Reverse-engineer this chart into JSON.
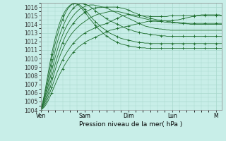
{
  "xlabel": "Pression niveau de la mer( hPa )",
  "ylim": [
    1004,
    1016.5
  ],
  "yticks": [
    1004,
    1005,
    1006,
    1007,
    1008,
    1009,
    1010,
    1011,
    1012,
    1013,
    1014,
    1015,
    1016
  ],
  "day_labels": [
    "Ven",
    "Sam",
    "Dim",
    "Lun",
    "M"
  ],
  "day_positions": [
    0,
    24,
    48,
    72,
    96
  ],
  "bg_color": "#c8eee8",
  "grid_color": "#a8d8cc",
  "line_color": "#1a6b2a",
  "total_hours": 100,
  "series": [
    [
      1004.0,
      1004.15,
      1004.35,
      1004.65,
      1005.05,
      1005.5,
      1006.0,
      1006.5,
      1007.0,
      1007.5,
      1008.0,
      1008.4,
      1008.8,
      1009.2,
      1009.55,
      1009.9,
      1010.2,
      1010.5,
      1010.75,
      1011.0,
      1011.2,
      1011.4,
      1011.55,
      1011.7,
      1011.85,
      1012.0,
      1012.1,
      1012.2,
      1012.3,
      1012.4,
      1012.5,
      1012.6,
      1012.7,
      1012.8,
      1012.9,
      1013.0,
      1013.1,
      1013.2,
      1013.3,
      1013.35,
      1013.4,
      1013.45,
      1013.5,
      1013.55,
      1013.6,
      1013.65,
      1013.7,
      1013.75,
      1013.8,
      1013.85,
      1013.9,
      1013.95,
      1014.0,
      1014.05,
      1014.1,
      1014.15,
      1014.2,
      1014.25,
      1014.3,
      1014.35,
      1014.35,
      1014.35,
      1014.35,
      1014.35,
      1014.35,
      1014.35,
      1014.35,
      1014.4,
      1014.4,
      1014.4,
      1014.4,
      1014.4,
      1014.45,
      1014.45,
      1014.5,
      1014.5,
      1014.55,
      1014.6,
      1014.65,
      1014.7,
      1014.75,
      1014.8,
      1014.85,
      1014.9,
      1014.95,
      1015.0,
      1015.0,
      1015.0,
      1015.0,
      1015.0,
      1015.0,
      1015.0,
      1015.0,
      1015.0,
      1015.0,
      1015.0,
      1015.0,
      1015.0,
      1015.0,
      1015.0
    ],
    [
      1004.0,
      1004.2,
      1004.5,
      1004.9,
      1005.4,
      1006.0,
      1006.6,
      1007.2,
      1007.8,
      1008.4,
      1008.9,
      1009.4,
      1009.85,
      1010.25,
      1010.6,
      1010.95,
      1011.25,
      1011.55,
      1011.8,
      1012.05,
      1012.25,
      1012.45,
      1012.65,
      1012.8,
      1012.95,
      1013.1,
      1013.2,
      1013.3,
      1013.4,
      1013.5,
      1013.6,
      1013.7,
      1013.8,
      1013.9,
      1013.95,
      1014.0,
      1014.1,
      1014.2,
      1014.3,
      1014.4,
      1014.5,
      1014.6,
      1014.7,
      1014.8,
      1014.9,
      1015.0,
      1015.05,
      1015.1,
      1015.15,
      1015.1,
      1015.1,
      1015.1,
      1015.05,
      1015.05,
      1015.0,
      1015.0,
      1015.0,
      1014.95,
      1014.95,
      1014.95,
      1014.9,
      1014.9,
      1014.9,
      1014.9,
      1014.9,
      1014.9,
      1014.9,
      1014.9,
      1014.9,
      1014.9,
      1014.95,
      1015.0,
      1015.0,
      1015.0,
      1015.0,
      1015.0,
      1015.0,
      1015.0,
      1015.0,
      1015.0,
      1015.0,
      1015.0,
      1015.0,
      1015.0,
      1015.0,
      1015.0,
      1015.05,
      1015.05,
      1015.1,
      1015.1,
      1015.1,
      1015.1,
      1015.1,
      1015.1,
      1015.1,
      1015.1,
      1015.1,
      1015.1,
      1015.1,
      1015.0
    ],
    [
      1004.0,
      1004.3,
      1004.7,
      1005.2,
      1005.8,
      1006.5,
      1007.2,
      1008.0,
      1008.7,
      1009.4,
      1010.0,
      1010.55,
      1011.05,
      1011.5,
      1011.9,
      1012.25,
      1012.6,
      1012.9,
      1013.15,
      1013.4,
      1013.6,
      1013.8,
      1014.0,
      1014.15,
      1014.3,
      1014.45,
      1014.6,
      1014.75,
      1014.85,
      1014.95,
      1015.05,
      1015.15,
      1015.2,
      1015.25,
      1015.3,
      1015.35,
      1015.4,
      1015.45,
      1015.5,
      1015.5,
      1015.5,
      1015.5,
      1015.5,
      1015.45,
      1015.4,
      1015.35,
      1015.3,
      1015.25,
      1015.2,
      1015.1,
      1015.0,
      1014.95,
      1014.9,
      1014.85,
      1014.8,
      1014.75,
      1014.7,
      1014.65,
      1014.6,
      1014.55,
      1014.5,
      1014.45,
      1014.4,
      1014.4,
      1014.35,
      1014.35,
      1014.3,
      1014.3,
      1014.25,
      1014.25,
      1014.2,
      1014.2,
      1014.2,
      1014.15,
      1014.15,
      1014.15,
      1014.1,
      1014.1,
      1014.1,
      1014.1,
      1014.05,
      1014.05,
      1014.0,
      1014.0,
      1014.0,
      1014.0,
      1014.0,
      1014.0,
      1014.0,
      1014.0,
      1014.0,
      1014.0,
      1014.0,
      1014.0,
      1014.0,
      1014.0,
      1014.0,
      1014.0,
      1014.0,
      1014.0
    ],
    [
      1004.0,
      1004.4,
      1004.9,
      1005.5,
      1006.2,
      1007.0,
      1007.8,
      1008.6,
      1009.4,
      1010.1,
      1010.7,
      1011.3,
      1011.85,
      1012.35,
      1012.8,
      1013.2,
      1013.55,
      1013.85,
      1014.15,
      1014.4,
      1014.65,
      1014.85,
      1015.05,
      1015.2,
      1015.35,
      1015.5,
      1015.6,
      1015.7,
      1015.8,
      1015.85,
      1015.9,
      1015.95,
      1015.95,
      1015.95,
      1016.0,
      1016.0,
      1016.0,
      1016.0,
      1016.0,
      1016.0,
      1016.0,
      1016.0,
      1016.0,
      1015.95,
      1015.9,
      1015.85,
      1015.8,
      1015.75,
      1015.65,
      1015.55,
      1015.45,
      1015.35,
      1015.3,
      1015.2,
      1015.1,
      1015.0,
      1014.95,
      1014.9,
      1014.8,
      1014.75,
      1014.7,
      1014.65,
      1014.6,
      1014.55,
      1014.5,
      1014.5,
      1014.45,
      1014.4,
      1014.4,
      1014.35,
      1014.3,
      1014.3,
      1014.25,
      1014.25,
      1014.2,
      1014.2,
      1014.2,
      1014.15,
      1014.15,
      1014.15,
      1014.1,
      1014.1,
      1014.1,
      1014.1,
      1014.1,
      1014.1,
      1014.1,
      1014.1,
      1014.1,
      1014.1,
      1014.1,
      1014.1,
      1014.1,
      1014.1,
      1014.1,
      1014.1,
      1014.1,
      1014.1,
      1014.1,
      1014.1
    ],
    [
      1004.0,
      1004.5,
      1005.1,
      1005.9,
      1006.7,
      1007.6,
      1008.5,
      1009.4,
      1010.2,
      1010.9,
      1011.6,
      1012.2,
      1012.75,
      1013.25,
      1013.7,
      1014.1,
      1014.45,
      1014.75,
      1015.05,
      1015.3,
      1015.5,
      1015.7,
      1015.85,
      1015.95,
      1016.05,
      1016.15,
      1016.2,
      1016.25,
      1016.25,
      1016.25,
      1016.2,
      1016.15,
      1016.1,
      1016.05,
      1016.0,
      1015.95,
      1015.9,
      1015.8,
      1015.7,
      1015.6,
      1015.5,
      1015.4,
      1015.3,
      1015.2,
      1015.1,
      1015.0,
      1014.9,
      1014.8,
      1014.7,
      1014.6,
      1014.5,
      1014.4,
      1014.3,
      1014.2,
      1014.1,
      1014.0,
      1013.9,
      1013.8,
      1013.75,
      1013.7,
      1013.65,
      1013.6,
      1013.55,
      1013.5,
      1013.5,
      1013.45,
      1013.45,
      1013.4,
      1013.4,
      1013.35,
      1013.35,
      1013.3,
      1013.3,
      1013.3,
      1013.3,
      1013.3,
      1013.3,
      1013.3,
      1013.3,
      1013.3,
      1013.3,
      1013.3,
      1013.3,
      1013.3,
      1013.3,
      1013.3,
      1013.3,
      1013.3,
      1013.3,
      1013.3,
      1013.3,
      1013.3,
      1013.3,
      1013.3,
      1013.3,
      1013.3,
      1013.3,
      1013.3,
      1013.3,
      1013.3
    ],
    [
      1004.0,
      1004.6,
      1005.3,
      1006.2,
      1007.2,
      1008.2,
      1009.2,
      1010.1,
      1011.0,
      1011.8,
      1012.5,
      1013.1,
      1013.65,
      1014.15,
      1014.6,
      1015.0,
      1015.35,
      1015.65,
      1015.9,
      1016.1,
      1016.25,
      1016.35,
      1016.4,
      1016.4,
      1016.35,
      1016.3,
      1016.2,
      1016.05,
      1015.9,
      1015.75,
      1015.55,
      1015.4,
      1015.25,
      1015.1,
      1014.95,
      1014.8,
      1014.65,
      1014.5,
      1014.4,
      1014.3,
      1014.2,
      1014.1,
      1014.0,
      1013.9,
      1013.8,
      1013.7,
      1013.6,
      1013.5,
      1013.4,
      1013.35,
      1013.3,
      1013.2,
      1013.15,
      1013.1,
      1013.05,
      1013.0,
      1012.95,
      1012.9,
      1012.9,
      1012.85,
      1012.8,
      1012.8,
      1012.75,
      1012.75,
      1012.7,
      1012.7,
      1012.65,
      1012.65,
      1012.65,
      1012.6,
      1012.6,
      1012.6,
      1012.6,
      1012.6,
      1012.6,
      1012.6,
      1012.6,
      1012.6,
      1012.6,
      1012.6,
      1012.6,
      1012.6,
      1012.6,
      1012.6,
      1012.6,
      1012.6,
      1012.6,
      1012.6,
      1012.6,
      1012.6,
      1012.6,
      1012.6,
      1012.6,
      1012.6,
      1012.6,
      1012.6,
      1012.6,
      1012.6,
      1012.6,
      1012.6
    ],
    [
      1004.0,
      1004.7,
      1005.6,
      1006.6,
      1007.7,
      1008.8,
      1009.9,
      1010.9,
      1011.8,
      1012.6,
      1013.35,
      1014.0,
      1014.55,
      1015.05,
      1015.5,
      1015.85,
      1016.1,
      1016.3,
      1016.4,
      1016.45,
      1016.4,
      1016.3,
      1016.15,
      1015.95,
      1015.75,
      1015.5,
      1015.25,
      1015.0,
      1014.75,
      1014.5,
      1014.3,
      1014.1,
      1013.9,
      1013.7,
      1013.55,
      1013.4,
      1013.25,
      1013.1,
      1012.95,
      1012.85,
      1012.75,
      1012.65,
      1012.55,
      1012.45,
      1012.35,
      1012.3,
      1012.25,
      1012.2,
      1012.15,
      1012.1,
      1012.05,
      1012.0,
      1011.95,
      1011.9,
      1011.9,
      1011.85,
      1011.85,
      1011.8,
      1011.8,
      1011.8,
      1011.75,
      1011.75,
      1011.75,
      1011.75,
      1011.75,
      1011.75,
      1011.75,
      1011.75,
      1011.75,
      1011.75,
      1011.75,
      1011.75,
      1011.75,
      1011.75,
      1011.75,
      1011.75,
      1011.75,
      1011.75,
      1011.75,
      1011.75,
      1011.75,
      1011.75,
      1011.75,
      1011.75,
      1011.75,
      1011.75,
      1011.75,
      1011.75,
      1011.75,
      1011.75,
      1011.75,
      1011.75,
      1011.75,
      1011.75,
      1011.75,
      1011.75,
      1011.75,
      1011.75,
      1011.75,
      1011.75
    ],
    [
      1004.0,
      1004.8,
      1005.8,
      1007.0,
      1008.2,
      1009.4,
      1010.5,
      1011.5,
      1012.4,
      1013.2,
      1013.9,
      1014.5,
      1015.0,
      1015.4,
      1015.75,
      1016.0,
      1016.2,
      1016.35,
      1016.4,
      1016.4,
      1016.3,
      1016.15,
      1015.95,
      1015.7,
      1015.45,
      1015.2,
      1014.9,
      1014.6,
      1014.35,
      1014.1,
      1013.85,
      1013.6,
      1013.4,
      1013.2,
      1013.0,
      1012.8,
      1012.65,
      1012.5,
      1012.35,
      1012.2,
      1012.1,
      1012.0,
      1011.9,
      1011.8,
      1011.7,
      1011.65,
      1011.6,
      1011.55,
      1011.5,
      1011.45,
      1011.4,
      1011.35,
      1011.35,
      1011.3,
      1011.3,
      1011.25,
      1011.25,
      1011.25,
      1011.2,
      1011.2,
      1011.2,
      1011.2,
      1011.2,
      1011.2,
      1011.2,
      1011.2,
      1011.2,
      1011.2,
      1011.2,
      1011.2,
      1011.2,
      1011.2,
      1011.2,
      1011.2,
      1011.2,
      1011.2,
      1011.2,
      1011.2,
      1011.2,
      1011.2,
      1011.2,
      1011.2,
      1011.2,
      1011.2,
      1011.2,
      1011.2,
      1011.2,
      1011.2,
      1011.2,
      1011.2,
      1011.2,
      1011.2,
      1011.2,
      1011.2,
      1011.2,
      1011.2,
      1011.2,
      1011.2,
      1011.2,
      1011.2
    ]
  ],
  "marker_series": [
    0,
    1,
    3,
    5,
    6,
    7
  ],
  "marker": "+",
  "marker_size": 2.5,
  "marker_interval": 6,
  "tick_fontsize": 5.5,
  "label_fontsize": 6.5
}
